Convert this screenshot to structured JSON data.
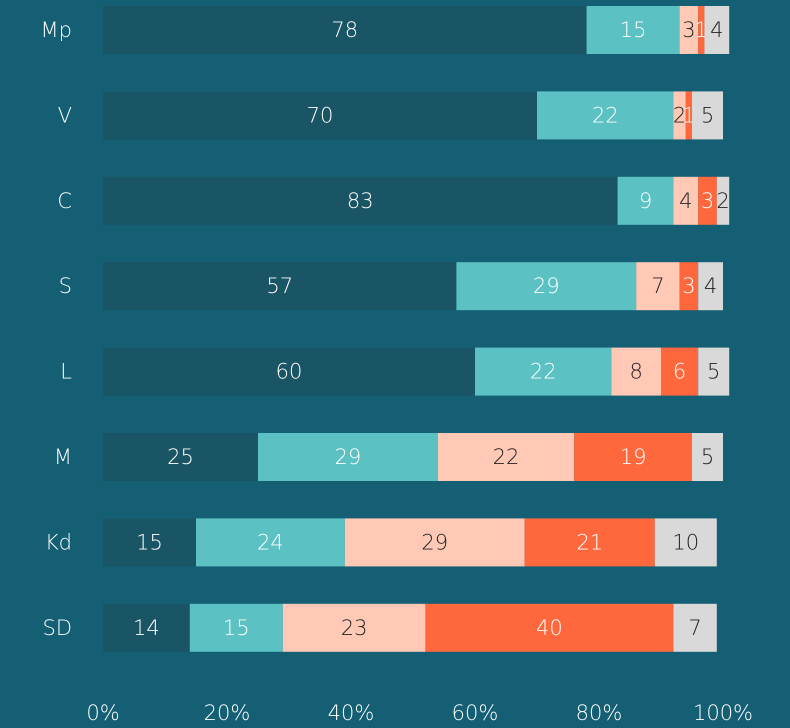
{
  "chart_data": {
    "type": "stacked_barh",
    "categories": [
      "Mp",
      "V",
      "C",
      "S",
      "L",
      "M",
      "Kd",
      "SD"
    ],
    "series": [
      {
        "color": "#1a5565",
        "values": [
          78,
          70,
          83,
          57,
          60,
          25,
          15,
          14
        ]
      },
      {
        "color": "#5bc1c3",
        "values": [
          15,
          22,
          9,
          29,
          22,
          29,
          24,
          15
        ]
      },
      {
        "color": "#ffc9b5",
        "values": [
          3,
          2,
          4,
          7,
          8,
          22,
          29,
          23
        ]
      },
      {
        "color": "#ff683d",
        "values": [
          1,
          1,
          3,
          3,
          6,
          19,
          21,
          40
        ]
      },
      {
        "color": "#d9d9d9",
        "values": [
          4,
          5,
          2,
          4,
          5,
          5,
          10,
          7
        ]
      }
    ],
    "xlim": [
      0,
      100
    ],
    "xticks": [
      {
        "value": 0,
        "label": "0%"
      },
      {
        "value": 20,
        "label": "20%"
      },
      {
        "value": 40,
        "label": "40%"
      },
      {
        "value": 60,
        "label": "60%"
      },
      {
        "value": 80,
        "label": "80%"
      },
      {
        "value": 100,
        "label": "100%"
      }
    ]
  }
}
